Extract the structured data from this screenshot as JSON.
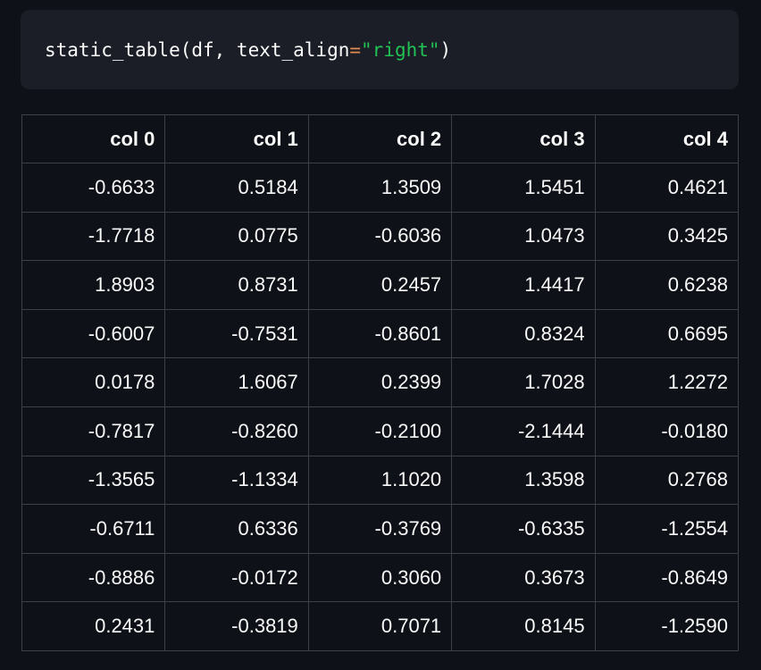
{
  "code": {
    "parts": [
      "static_table(df, text_align",
      "=",
      "\"right\"",
      ")"
    ]
  },
  "table": {
    "headers": [
      "col 0",
      "col 1",
      "col 2",
      "col 3",
      "col 4"
    ],
    "rows": [
      [
        "-0.6633",
        "0.5184",
        "1.3509",
        "1.5451",
        "0.4621"
      ],
      [
        "-1.7718",
        "0.0775",
        "-0.6036",
        "1.0473",
        "0.3425"
      ],
      [
        "1.8903",
        "0.8731",
        "0.2457",
        "1.4417",
        "0.6238"
      ],
      [
        "-0.6007",
        "-0.7531",
        "-0.8601",
        "0.8324",
        "0.6695"
      ],
      [
        "0.0178",
        "1.6067",
        "0.2399",
        "1.7028",
        "1.2272"
      ],
      [
        "-0.7817",
        "-0.8260",
        "-0.2100",
        "-2.1444",
        "-0.0180"
      ],
      [
        "-1.3565",
        "-1.1334",
        "1.1020",
        "1.3598",
        "0.2768"
      ],
      [
        "-0.6711",
        "0.6336",
        "-0.3769",
        "-0.6335",
        "-1.2554"
      ],
      [
        "-0.8886",
        "-0.0172",
        "0.3060",
        "0.3673",
        "-0.8649"
      ],
      [
        "0.2431",
        "-0.3819",
        "0.7071",
        "0.8145",
        "-1.2590"
      ]
    ]
  }
}
